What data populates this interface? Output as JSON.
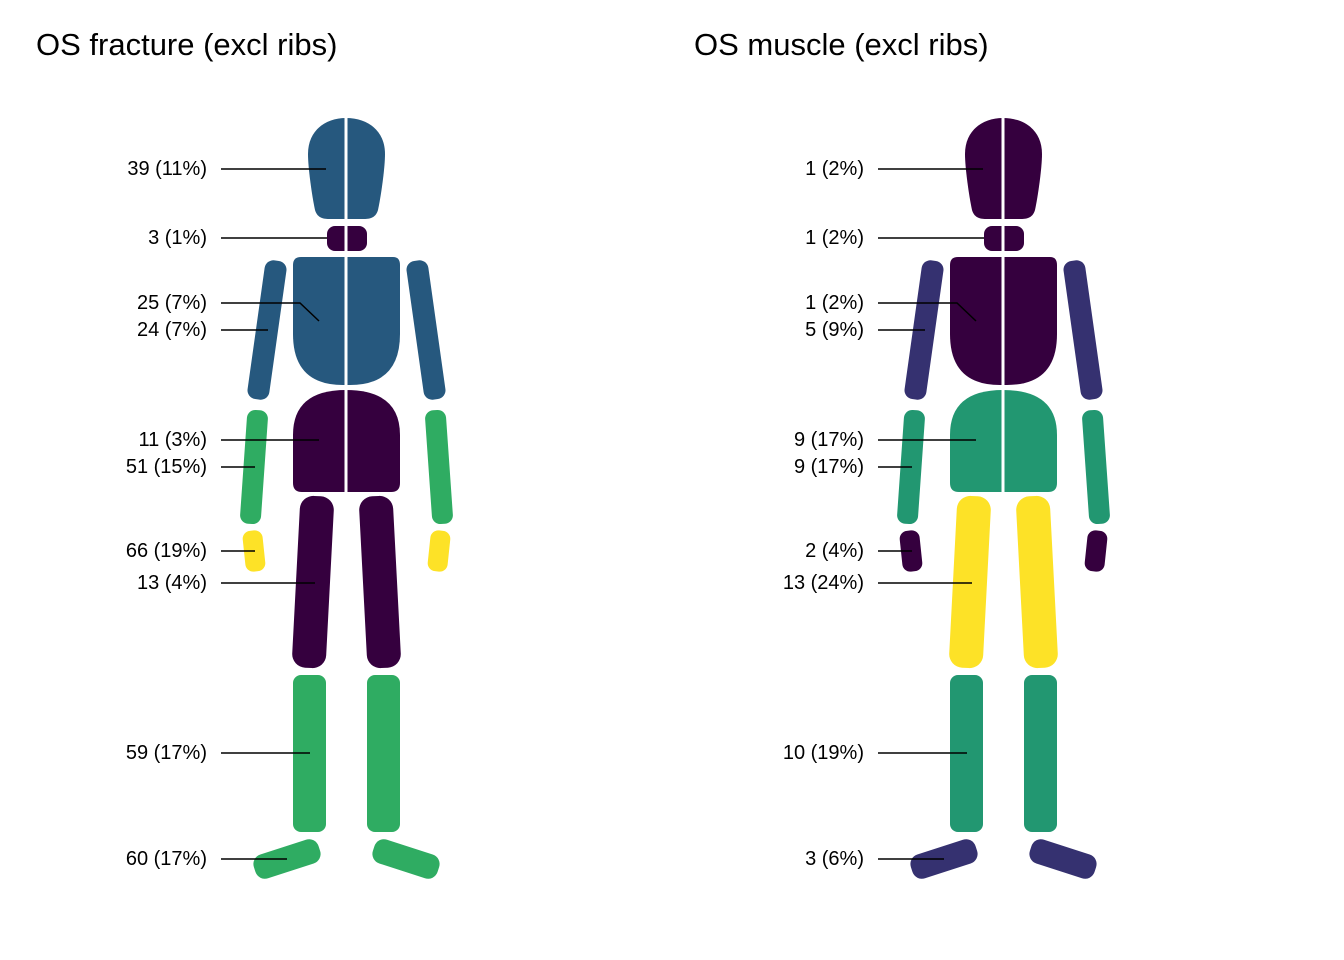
{
  "chart_data": [
    {
      "type": "body-map",
      "title": "OS fracture (excl ribs)",
      "regions": [
        {
          "region": "head",
          "count": 39,
          "label": "39 (11%)",
          "color": "#26587E"
        },
        {
          "region": "neck",
          "count": 3,
          "label": "3 (1%)",
          "color": "#35003E"
        },
        {
          "region": "chest",
          "count": 25,
          "label": "25 (7%)",
          "color": "#26587E"
        },
        {
          "region": "upper-arm",
          "count": 24,
          "label": "24 (7%)",
          "color": "#26587E"
        },
        {
          "region": "abdomen",
          "count": 11,
          "label": "11 (3%)",
          "color": "#35003E"
        },
        {
          "region": "forearm",
          "count": 51,
          "label": "51 (15%)",
          "color": "#2FAC62"
        },
        {
          "region": "hand",
          "count": 66,
          "label": "66 (19%)",
          "color": "#FDE227"
        },
        {
          "region": "thigh",
          "count": 13,
          "label": "13 (4%)",
          "color": "#35003E"
        },
        {
          "region": "lower-leg",
          "count": 59,
          "label": "59 (17%)",
          "color": "#2FAC62"
        },
        {
          "region": "foot",
          "count": 60,
          "label": "60 (17%)",
          "color": "#2FAC62"
        }
      ]
    },
    {
      "type": "body-map",
      "title": "OS muscle (excl ribs)",
      "regions": [
        {
          "region": "head",
          "count": 1,
          "label": "1 (2%)",
          "color": "#35003E"
        },
        {
          "region": "neck",
          "count": 1,
          "label": "1 (2%)",
          "color": "#35003E"
        },
        {
          "region": "chest",
          "count": 1,
          "label": "1 (2%)",
          "color": "#35003E"
        },
        {
          "region": "upper-arm",
          "count": 5,
          "label": "5 (9%)",
          "color": "#353170"
        },
        {
          "region": "abdomen",
          "count": 9,
          "label": "9 (17%)",
          "color": "#229771"
        },
        {
          "region": "forearm",
          "count": 9,
          "label": "9 (17%)",
          "color": "#229771"
        },
        {
          "region": "hand",
          "count": 2,
          "label": "2 (4%)",
          "color": "#35003E"
        },
        {
          "region": "thigh",
          "count": 13,
          "label": "13 (24%)",
          "color": "#FDE227"
        },
        {
          "region": "lower-leg",
          "count": 10,
          "label": "10 (19%)",
          "color": "#229771"
        },
        {
          "region": "foot",
          "count": 3,
          "label": "3 (6%)",
          "color": "#353170"
        }
      ]
    }
  ]
}
